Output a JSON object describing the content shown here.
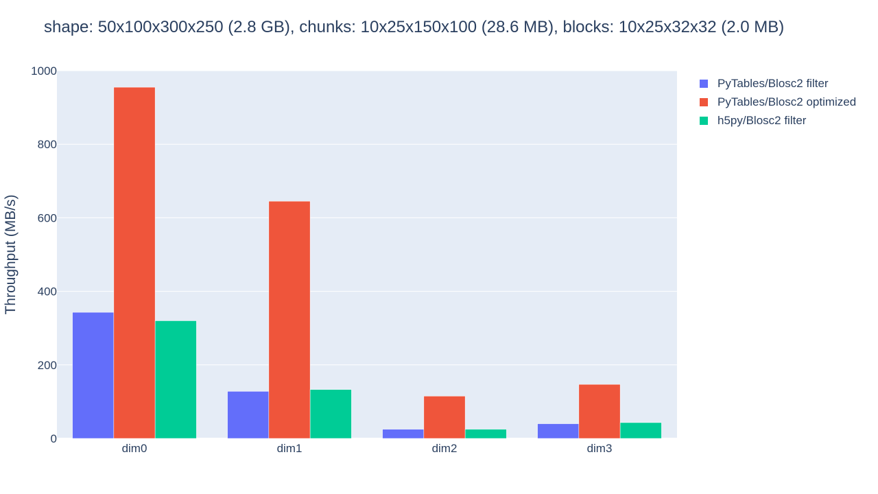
{
  "chart_data": {
    "type": "bar",
    "title": "shape: 50x100x300x250 (2.8 GB), chunks: 10x25x150x100 (28.6 MB), blocks: 10x25x32x32 (2.0 MB)",
    "xlabel": "",
    "ylabel": "Throughput (MB/s)",
    "categories": [
      "dim0",
      "dim1",
      "dim2",
      "dim3"
    ],
    "ylim": [
      0,
      1000
    ],
    "yticks": [
      0,
      200,
      400,
      600,
      800,
      1000
    ],
    "grid": true,
    "legend_position": "top-right",
    "plot_bgcolor": "#e5ecf6",
    "series": [
      {
        "name": "PyTables/Blosc2 filter",
        "color": "#636efa",
        "values": [
          343,
          128,
          25,
          40
        ]
      },
      {
        "name": "PyTables/Blosc2 optimized",
        "color": "#ef553b",
        "values": [
          955,
          645,
          115,
          147
        ]
      },
      {
        "name": "h5py/Blosc2 filter",
        "color": "#00cc96",
        "values": [
          320,
          133,
          25,
          43
        ]
      }
    ]
  }
}
